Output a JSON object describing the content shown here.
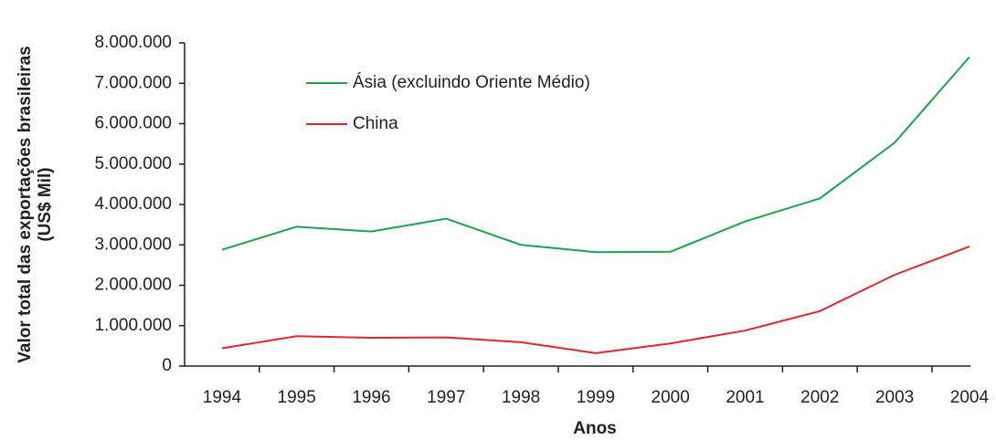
{
  "chart_data": {
    "type": "line",
    "ylabel": [
      "Valor total das exportações brasileiras",
      "(US$ Mil)"
    ],
    "xlabel": "Anos",
    "categories": [
      "1994",
      "1995",
      "1996",
      "1997",
      "1998",
      "1999",
      "2000",
      "2001",
      "2002",
      "2003",
      "2004"
    ],
    "series": [
      {
        "name": "Ásia (excluindo Oriente Médio)",
        "color": "#1aa34a",
        "values": [
          2880000,
          3450000,
          3330000,
          3650000,
          3000000,
          2820000,
          2830000,
          3580000,
          4150000,
          5530000,
          7650000
        ]
      },
      {
        "name": "China",
        "color": "#e3262e",
        "values": [
          440000,
          740000,
          700000,
          710000,
          590000,
          320000,
          560000,
          880000,
          1360000,
          2260000,
          2960000
        ]
      }
    ],
    "ylim": [
      0,
      8000000
    ],
    "yticks": [
      0,
      {
        "value": 1000000,
        "label": "1.000.000"
      },
      {
        "value": 2000000,
        "label": "2.000.000"
      },
      {
        "value": 3000000,
        "label": "3.000.000"
      },
      {
        "value": 4000000,
        "label": "4.000.000"
      },
      {
        "value": 5000000,
        "label": "5.000.000"
      },
      {
        "value": 6000000,
        "label": "6.000.000"
      },
      {
        "value": 7000000,
        "label": "7.000.000"
      },
      {
        "value": 8000000,
        "label": "8.000.000"
      }
    ]
  }
}
